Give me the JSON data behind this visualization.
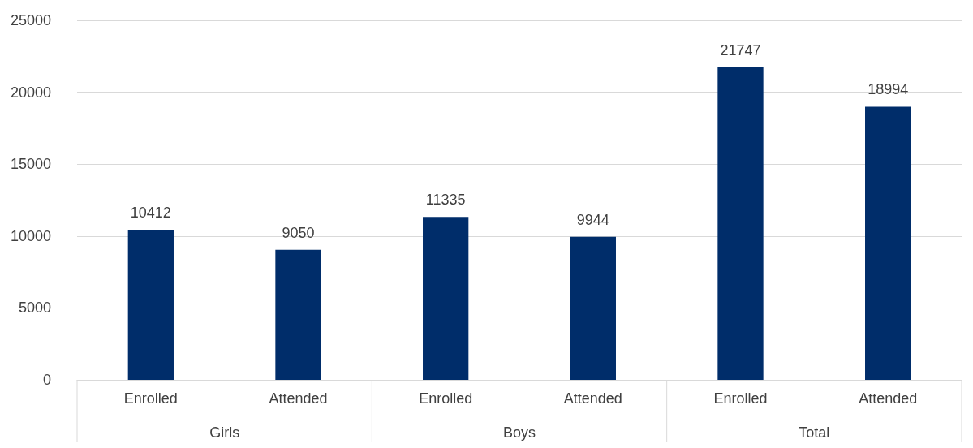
{
  "chart_data": {
    "type": "bar",
    "categories": [
      "Enrolled",
      "Attended",
      "Enrolled",
      "Attended",
      "Enrolled",
      "Attended"
    ],
    "values": [
      10412,
      9050,
      11335,
      9944,
      21747,
      18994
    ],
    "color": "#002d6a",
    "ylim": [
      0,
      25000
    ],
    "yticks": [
      0,
      5000,
      10000,
      15000,
      20000,
      25000
    ],
    "grid": "y",
    "data_labels": true,
    "annotations": [
      "Girls",
      "Boys",
      "Total"
    ]
  }
}
